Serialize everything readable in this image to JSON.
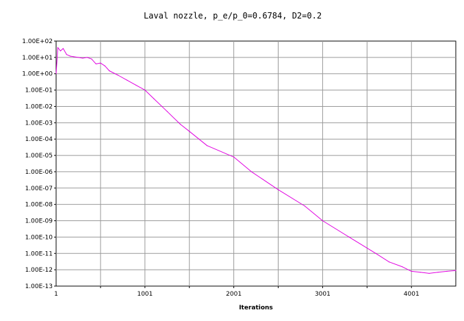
{
  "chart_data": {
    "type": "line",
    "title": "Laval nozzle, p_e/p_0=0.6784, D2=0.2",
    "xlabel": "Iterations",
    "ylabel": "",
    "x_scale": "linear",
    "y_scale": "log",
    "xlim": [
      1,
      4500
    ],
    "ylim": [
      1e-13,
      100
    ],
    "x_ticks": [
      1,
      1001,
      2001,
      3001,
      4001
    ],
    "x_tick_labels": [
      "1",
      "1001",
      "2001",
      "3001",
      "4001"
    ],
    "y_tick_labels": [
      "1.00E-13",
      "1.00E-12",
      "1.00E-11",
      "1.00E-10",
      "1.00E-09",
      "1.00E-08",
      "1.00E-07",
      "1.00E-06",
      "1.00E-05",
      "1.00E-04",
      "1.00E-03",
      "1.00E-02",
      "1.00E-01",
      "1.00E+00",
      "1.00E+01",
      "1.00E+02"
    ],
    "grid": true,
    "legend": "none",
    "series": [
      {
        "color": "#e000e0",
        "x": [
          1,
          20,
          50,
          80,
          120,
          160,
          200,
          250,
          300,
          350,
          400,
          450,
          500,
          550,
          600,
          700,
          800,
          900,
          1001,
          1100,
          1250,
          1400,
          1500,
          1700,
          2001,
          2200,
          2500,
          2800,
          3001,
          3300,
          3600,
          3750,
          3900,
          4001,
          4100,
          4200,
          4300,
          4400,
          4500
        ],
        "y": [
          1.0,
          40,
          25,
          35,
          15,
          12,
          11,
          10,
          9,
          10,
          8,
          4,
          4.5,
          3,
          1.5,
          0.8,
          0.4,
          0.2,
          0.1,
          0.03,
          0.005,
          0.0008,
          0.0003,
          4e-05,
          8e-06,
          1e-06,
          8e-08,
          8e-09,
          1e-09,
          1e-10,
          1e-11,
          3e-12,
          1.5e-12,
          8e-13,
          7e-13,
          6e-13,
          7e-13,
          8e-13,
          9e-13
        ]
      }
    ]
  }
}
